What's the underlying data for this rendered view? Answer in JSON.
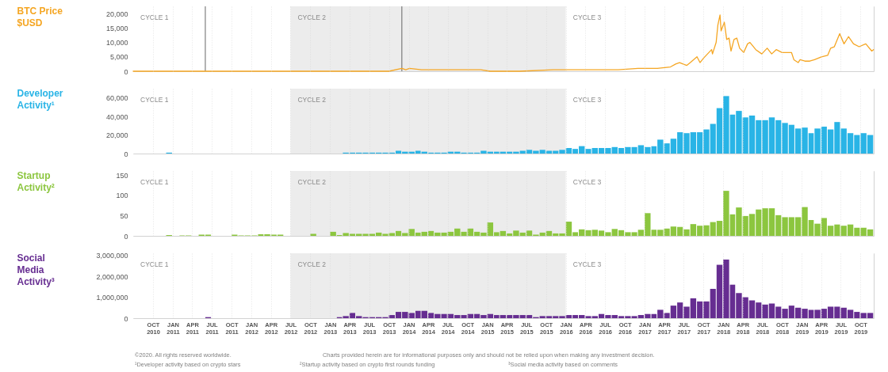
{
  "chart_data": [
    {
      "type": "line",
      "ylabel": "BTC Price $USD",
      "x": [
        "2010-07",
        "2011-01",
        "2011-06",
        "2012-01",
        "2012-07",
        "2013-01",
        "2013-04",
        "2013-10",
        "2013-11-30",
        "2013-12-18",
        "2014-01-05",
        "2014-03-01",
        "2014-06-01",
        "2014-09-01",
        "2014-12-01",
        "2015-01-14",
        "2015-06-01",
        "2015-11-04",
        "2016-01-01",
        "2016-06-16",
        "2016-09-01",
        "2016-12-01",
        "2017-01-04",
        "2017-03-01",
        "2017-05-01",
        "2017-05-25",
        "2017-06-12",
        "2017-07-15",
        "2017-08-01",
        "2017-09-01",
        "2017-09-15",
        "2017-10-01",
        "2017-10-20",
        "2017-11-08",
        "2017-11-12",
        "2017-11-29",
        "2017-12-07",
        "2017-12-17",
        "2017-12-22",
        "2018-01-06",
        "2018-01-17",
        "2018-01-28",
        "2018-02-06",
        "2018-02-20",
        "2018-03-05",
        "2018-03-18",
        "2018-04-06",
        "2018-04-24",
        "2018-05-05",
        "2018-06-01",
        "2018-06-29",
        "2018-07-24",
        "2018-08-14",
        "2018-09-04",
        "2018-10-01",
        "2018-11-14",
        "2018-11-25",
        "2018-12-15",
        "2018-12-24",
        "2019-01-15",
        "2019-02-07",
        "2019-03-01",
        "2019-04-02",
        "2019-05-01",
        "2019-05-15",
        "2019-06-01",
        "2019-06-26",
        "2019-07-16",
        "2019-08-06",
        "2019-08-29",
        "2019-09-24",
        "2019-10-25",
        "2019-11-22",
        "2019-11-30"
      ],
      "series": [
        {
          "color": "#f5a623",
          "values": [
            0,
            0,
            0,
            0,
            0,
            0,
            0,
            0,
            1000,
            500,
            1000,
            500,
            500,
            500,
            500,
            0,
            0,
            500,
            500,
            500,
            500,
            1000,
            1000,
            1000,
            1500,
            2500,
            3000,
            2000,
            3000,
            5000,
            3000,
            4500,
            6000,
            7500,
            6000,
            10000,
            16000,
            19500,
            14000,
            17000,
            11000,
            11500,
            7000,
            11000,
            11500,
            8000,
            6500,
            9500,
            10000,
            7500,
            6000,
            8000,
            6000,
            7500,
            6500,
            6500,
            4000,
            3000,
            4000,
            3500,
            3500,
            4000,
            5000,
            5500,
            8000,
            8500,
            13000,
            9500,
            12000,
            9500,
            8500,
            9500,
            7000,
            7500
          ]
        }
      ],
      "xlim": [
        "2010-07",
        "2019-12"
      ],
      "xticks": [
        {
          "value": "2010-10",
          "label": null
        },
        {
          "value": "2011-01",
          "label": null
        },
        {
          "value": "2011-04",
          "label": null
        },
        {
          "value": "2011-07",
          "label": null
        },
        {
          "value": "2011-10",
          "label": null
        },
        {
          "value": "2012-01",
          "label": null
        },
        {
          "value": "2012-04",
          "label": null
        },
        {
          "value": "2012-07",
          "label": null
        },
        {
          "value": "2012-10",
          "label": null
        },
        {
          "value": "2013-01",
          "label": null
        },
        {
          "value": "2013-04",
          "label": null
        },
        {
          "value": "2013-07",
          "label": null
        },
        {
          "value": "2013-10",
          "label": null
        },
        {
          "value": "2014-01",
          "label": null
        },
        {
          "value": "2014-04",
          "label": null
        },
        {
          "value": "2014-07",
          "label": null
        },
        {
          "value": "2014-10",
          "label": null
        },
        {
          "value": "2015-01",
          "label": null
        },
        {
          "value": "2015-04",
          "label": null
        },
        {
          "value": "2015-07",
          "label": null
        },
        {
          "value": "2015-10",
          "label": null
        },
        {
          "value": "2016-01",
          "label": null
        },
        {
          "value": "2016-04",
          "label": null
        },
        {
          "value": "2016-07",
          "label": null
        },
        {
          "value": "2016-10",
          "label": null
        },
        {
          "value": "2017-01",
          "label": null
        },
        {
          "value": "2017-04",
          "label": null
        },
        {
          "value": "2017-07",
          "label": null
        },
        {
          "value": "2017-10",
          "label": null
        },
        {
          "value": "2018-01",
          "label": null
        },
        {
          "value": "2018-04",
          "label": null
        },
        {
          "value": "2018-07",
          "label": null
        },
        {
          "value": "2018-10",
          "label": null
        },
        {
          "value": "2019-01",
          "label": null
        },
        {
          "value": "2019-04",
          "label": null
        },
        {
          "value": "2019-07",
          "label": null
        },
        {
          "value": "2019-10",
          "label": null
        }
      ],
      "ylim": [
        0,
        22500
      ],
      "yticks": [
        0,
        {
          "value": 5000,
          "label": "5,000"
        },
        {
          "value": 10000,
          "label": "10,000"
        },
        {
          "value": 15000,
          "label": "15,000"
        },
        {
          "value": 20000,
          "label": "20,000"
        }
      ],
      "grid": "x",
      "tick_labels": "y",
      "bands": [
        {
          "axis": "x",
          "from": "2010-07",
          "to": "2012-07",
          "label": "CYCLE 1",
          "color": "#ffffff"
        },
        {
          "axis": "x",
          "from": "2012-07",
          "to": "2016-01",
          "label": "CYCLE 2",
          "color": "#ececec"
        },
        {
          "axis": "x",
          "from": "2016-01",
          "to": "2019-12",
          "label": "CYCLE 3",
          "color": "#ffffff"
        }
      ],
      "ref_lines": [
        {
          "axis": "x",
          "value": "2011-06",
          "color": "#555555"
        },
        {
          "axis": "x",
          "value": "2013-11-30",
          "color": "#555555"
        }
      ]
    },
    {
      "type": "bar",
      "ylabel": "Developer Activity¹",
      "x": [
        "2010-07",
        "2010-08",
        "2010-09",
        "2010-10",
        "2010-11",
        "2010-12",
        "2011-01",
        "2011-02",
        "2011-03",
        "2011-04",
        "2011-05",
        "2011-06",
        "2011-07",
        "2011-08",
        "2011-09",
        "2011-10",
        "2011-11",
        "2011-12",
        "2012-01",
        "2012-02",
        "2012-03",
        "2012-04",
        "2012-05",
        "2012-06",
        "2012-07",
        "2012-08",
        "2012-09",
        "2012-10",
        "2012-11",
        "2012-12",
        "2013-01",
        "2013-02",
        "2013-03",
        "2013-04",
        "2013-05",
        "2013-06",
        "2013-07",
        "2013-08",
        "2013-09",
        "2013-10",
        "2013-11",
        "2013-12",
        "2014-01",
        "2014-02",
        "2014-03",
        "2014-04",
        "2014-05",
        "2014-06",
        "2014-07",
        "2014-08",
        "2014-09",
        "2014-10",
        "2014-11",
        "2014-12",
        "2015-01",
        "2015-02",
        "2015-03",
        "2015-04",
        "2015-05",
        "2015-06",
        "2015-07",
        "2015-08",
        "2015-09",
        "2015-10",
        "2015-11",
        "2015-12",
        "2016-01",
        "2016-02",
        "2016-03",
        "2016-04",
        "2016-05",
        "2016-06",
        "2016-07",
        "2016-08",
        "2016-09",
        "2016-10",
        "2016-11",
        "2016-12",
        "2017-01",
        "2017-02",
        "2017-03",
        "2017-04",
        "2017-05",
        "2017-06",
        "2017-07",
        "2017-08",
        "2017-09",
        "2017-10",
        "2017-11",
        "2017-12",
        "2018-01",
        "2018-02",
        "2018-03",
        "2018-04",
        "2018-05",
        "2018-06",
        "2018-07",
        "2018-08",
        "2018-09",
        "2018-10",
        "2018-11",
        "2018-12",
        "2019-01",
        "2019-02",
        "2019-03",
        "2019-04",
        "2019-05",
        "2019-06",
        "2019-07",
        "2019-08",
        "2019-09",
        "2019-10",
        "2019-11"
      ],
      "series": [
        {
          "color": "#29b4e6",
          "values": [
            0,
            0,
            0,
            0,
            0,
            1000,
            0,
            0,
            0,
            0,
            0,
            0,
            0,
            0,
            0,
            0,
            0,
            0,
            0,
            0,
            0,
            0,
            0,
            0,
            0,
            0,
            0,
            0,
            0,
            0,
            0,
            0,
            1000,
            1000,
            1000,
            1000,
            1000,
            1000,
            1000,
            1000,
            3000,
            2000,
            2000,
            3000,
            2000,
            1000,
            1000,
            1000,
            2000,
            2000,
            1000,
            1000,
            1000,
            3000,
            2000,
            2000,
            2000,
            2000,
            2000,
            3000,
            4000,
            3000,
            4000,
            3000,
            3000,
            4000,
            6000,
            5000,
            8000,
            5000,
            6000,
            6000,
            6000,
            7000,
            6000,
            7000,
            7000,
            9000,
            7000,
            8000,
            15000,
            11000,
            16000,
            23000,
            22000,
            23000,
            23000,
            26000,
            32000,
            49000,
            62000,
            42000,
            46000,
            39000,
            41000,
            36000,
            36000,
            39000,
            36000,
            33000,
            31000,
            27000,
            28000,
            22000,
            27000,
            29000,
            26000,
            34000,
            27000,
            22000,
            20000,
            22000,
            20000
          ]
        }
      ],
      "xlim": [
        "2010-07",
        "2019-12"
      ],
      "xticks": [
        {
          "value": "2010-10",
          "label": null
        },
        {
          "value": "2011-01",
          "label": null
        },
        {
          "value": "2011-04",
          "label": null
        },
        {
          "value": "2011-07",
          "label": null
        },
        {
          "value": "2011-10",
          "label": null
        },
        {
          "value": "2012-01",
          "label": null
        },
        {
          "value": "2012-04",
          "label": null
        },
        {
          "value": "2012-07",
          "label": null
        },
        {
          "value": "2012-10",
          "label": null
        },
        {
          "value": "2013-01",
          "label": null
        },
        {
          "value": "2013-04",
          "label": null
        },
        {
          "value": "2013-07",
          "label": null
        },
        {
          "value": "2013-10",
          "label": null
        },
        {
          "value": "2014-01",
          "label": null
        },
        {
          "value": "2014-04",
          "label": null
        },
        {
          "value": "2014-07",
          "label": null
        },
        {
          "value": "2014-10",
          "label": null
        },
        {
          "value": "2015-01",
          "label": null
        },
        {
          "value": "2015-04",
          "label": null
        },
        {
          "value": "2015-07",
          "label": null
        },
        {
          "value": "2015-10",
          "label": null
        },
        {
          "value": "2016-01",
          "label": null
        },
        {
          "value": "2016-04",
          "label": null
        },
        {
          "value": "2016-07",
          "label": null
        },
        {
          "value": "2016-10",
          "label": null
        },
        {
          "value": "2017-01",
          "label": null
        },
        {
          "value": "2017-04",
          "label": null
        },
        {
          "value": "2017-07",
          "label": null
        },
        {
          "value": "2017-10",
          "label": null
        },
        {
          "value": "2018-01",
          "label": null
        },
        {
          "value": "2018-04",
          "label": null
        },
        {
          "value": "2018-07",
          "label": null
        },
        {
          "value": "2018-10",
          "label": null
        },
        {
          "value": "2019-01",
          "label": null
        },
        {
          "value": "2019-04",
          "label": null
        },
        {
          "value": "2019-07",
          "label": null
        },
        {
          "value": "2019-10",
          "label": null
        }
      ],
      "ylim": [
        0,
        70000
      ],
      "yticks": [
        0,
        {
          "value": 20000,
          "label": "20,000"
        },
        {
          "value": 40000,
          "label": "40,000"
        },
        {
          "value": 60000,
          "label": "60,000"
        }
      ],
      "grid": "x",
      "tick_labels": "y",
      "bands": [
        {
          "axis": "x",
          "from": "2010-07",
          "to": "2012-07",
          "label": "CYCLE 1",
          "color": "#ffffff"
        },
        {
          "axis": "x",
          "from": "2012-07",
          "to": "2016-01",
          "label": "CYCLE 2",
          "color": "#ececec"
        },
        {
          "axis": "x",
          "from": "2016-01",
          "to": "2019-12",
          "label": "CYCLE 3",
          "color": "#ffffff"
        }
      ]
    },
    {
      "type": "bar",
      "ylabel": "Startup Activity²",
      "x": [
        "2010-07",
        "2010-08",
        "2010-09",
        "2010-10",
        "2010-11",
        "2010-12",
        "2011-01",
        "2011-02",
        "2011-03",
        "2011-04",
        "2011-05",
        "2011-06",
        "2011-07",
        "2011-08",
        "2011-09",
        "2011-10",
        "2011-11",
        "2011-12",
        "2012-01",
        "2012-02",
        "2012-03",
        "2012-04",
        "2012-05",
        "2012-06",
        "2012-07",
        "2012-08",
        "2012-09",
        "2012-10",
        "2012-11",
        "2012-12",
        "2013-01",
        "2013-02",
        "2013-03",
        "2013-04",
        "2013-05",
        "2013-06",
        "2013-07",
        "2013-08",
        "2013-09",
        "2013-10",
        "2013-11",
        "2013-12",
        "2014-01",
        "2014-02",
        "2014-03",
        "2014-04",
        "2014-05",
        "2014-06",
        "2014-07",
        "2014-08",
        "2014-09",
        "2014-10",
        "2014-11",
        "2014-12",
        "2015-01",
        "2015-02",
        "2015-03",
        "2015-04",
        "2015-05",
        "2015-06",
        "2015-07",
        "2015-08",
        "2015-09",
        "2015-10",
        "2015-11",
        "2015-12",
        "2016-01",
        "2016-02",
        "2016-03",
        "2016-04",
        "2016-05",
        "2016-06",
        "2016-07",
        "2016-08",
        "2016-09",
        "2016-10",
        "2016-11",
        "2016-12",
        "2017-01",
        "2017-02",
        "2017-03",
        "2017-04",
        "2017-05",
        "2017-06",
        "2017-07",
        "2017-08",
        "2017-09",
        "2017-10",
        "2017-11",
        "2017-12",
        "2018-01",
        "2018-02",
        "2018-03",
        "2018-04",
        "2018-05",
        "2018-06",
        "2018-07",
        "2018-08",
        "2018-09",
        "2018-10",
        "2018-11",
        "2018-12",
        "2019-01",
        "2019-02",
        "2019-03",
        "2019-04",
        "2019-05",
        "2019-06",
        "2019-07",
        "2019-08",
        "2019-09",
        "2019-10",
        "2019-11"
      ],
      "series": [
        {
          "color": "#8cc63f",
          "values": [
            0,
            0,
            0,
            0,
            0,
            2,
            0,
            1,
            1,
            0,
            3,
            3,
            0,
            0,
            0,
            3,
            1,
            1,
            1,
            4,
            4,
            3,
            3,
            0,
            0,
            0,
            0,
            5,
            0,
            0,
            10,
            2,
            7,
            5,
            5,
            5,
            5,
            8,
            5,
            7,
            12,
            7,
            17,
            8,
            10,
            12,
            8,
            8,
            10,
            18,
            10,
            18,
            10,
            8,
            33,
            9,
            12,
            6,
            13,
            8,
            13,
            3,
            8,
            12,
            6,
            6,
            35,
            9,
            16,
            14,
            15,
            13,
            9,
            17,
            14,
            9,
            9,
            15,
            56,
            15,
            15,
            18,
            23,
            22,
            16,
            29,
            25,
            26,
            34,
            37,
            111,
            53,
            70,
            49,
            54,
            65,
            68,
            68,
            51,
            46,
            46,
            46,
            71,
            39,
            30,
            44,
            25,
            28,
            25,
            28,
            20,
            20,
            16
          ]
        }
      ],
      "xlim": [
        "2010-07",
        "2019-12"
      ],
      "xticks": [
        {
          "value": "2010-10",
          "label": null
        },
        {
          "value": "2011-01",
          "label": null
        },
        {
          "value": "2011-04",
          "label": null
        },
        {
          "value": "2011-07",
          "label": null
        },
        {
          "value": "2011-10",
          "label": null
        },
        {
          "value": "2012-01",
          "label": null
        },
        {
          "value": "2012-04",
          "label": null
        },
        {
          "value": "2012-07",
          "label": null
        },
        {
          "value": "2012-10",
          "label": null
        },
        {
          "value": "2013-01",
          "label": null
        },
        {
          "value": "2013-04",
          "label": null
        },
        {
          "value": "2013-07",
          "label": null
        },
        {
          "value": "2013-10",
          "label": null
        },
        {
          "value": "2014-01",
          "label": null
        },
        {
          "value": "2014-04",
          "label": null
        },
        {
          "value": "2014-07",
          "label": null
        },
        {
          "value": "2014-10",
          "label": null
        },
        {
          "value": "2015-01",
          "label": null
        },
        {
          "value": "2015-04",
          "label": null
        },
        {
          "value": "2015-07",
          "label": null
        },
        {
          "value": "2015-10",
          "label": null
        },
        {
          "value": "2016-01",
          "label": null
        },
        {
          "value": "2016-04",
          "label": null
        },
        {
          "value": "2016-07",
          "label": null
        },
        {
          "value": "2016-10",
          "label": null
        },
        {
          "value": "2017-01",
          "label": null
        },
        {
          "value": "2017-04",
          "label": null
        },
        {
          "value": "2017-07",
          "label": null
        },
        {
          "value": "2017-10",
          "label": null
        },
        {
          "value": "2018-01",
          "label": null
        },
        {
          "value": "2018-04",
          "label": null
        },
        {
          "value": "2018-07",
          "label": null
        },
        {
          "value": "2018-10",
          "label": null
        },
        {
          "value": "2019-01",
          "label": null
        },
        {
          "value": "2019-04",
          "label": null
        },
        {
          "value": "2019-07",
          "label": null
        },
        {
          "value": "2019-10",
          "label": null
        }
      ],
      "ylim": [
        0,
        160
      ],
      "yticks": [
        0,
        50,
        100,
        150
      ],
      "grid": "x",
      "tick_labels": "y",
      "bands": [
        {
          "axis": "x",
          "from": "2010-07",
          "to": "2012-07",
          "label": "CYCLE 1",
          "color": "#ffffff"
        },
        {
          "axis": "x",
          "from": "2012-07",
          "to": "2016-01",
          "label": "CYCLE 2",
          "color": "#ececec"
        },
        {
          "axis": "x",
          "from": "2016-01",
          "to": "2019-12",
          "label": "CYCLE 3",
          "color": "#ffffff"
        }
      ]
    },
    {
      "type": "bar",
      "ylabel": "Social Media Activity³",
      "x": [
        "2010-07",
        "2010-08",
        "2010-09",
        "2010-10",
        "2010-11",
        "2010-12",
        "2011-01",
        "2011-02",
        "2011-03",
        "2011-04",
        "2011-05",
        "2011-06",
        "2011-07",
        "2011-08",
        "2011-09",
        "2011-10",
        "2011-11",
        "2011-12",
        "2012-01",
        "2012-02",
        "2012-03",
        "2012-04",
        "2012-05",
        "2012-06",
        "2012-07",
        "2012-08",
        "2012-09",
        "2012-10",
        "2012-11",
        "2012-12",
        "2013-01",
        "2013-02",
        "2013-03",
        "2013-04",
        "2013-05",
        "2013-06",
        "2013-07",
        "2013-08",
        "2013-09",
        "2013-10",
        "2013-11",
        "2013-12",
        "2014-01",
        "2014-02",
        "2014-03",
        "2014-04",
        "2014-05",
        "2014-06",
        "2014-07",
        "2014-08",
        "2014-09",
        "2014-10",
        "2014-11",
        "2014-12",
        "2015-01",
        "2015-02",
        "2015-03",
        "2015-04",
        "2015-05",
        "2015-06",
        "2015-07",
        "2015-08",
        "2015-09",
        "2015-10",
        "2015-11",
        "2015-12",
        "2016-01",
        "2016-02",
        "2016-03",
        "2016-04",
        "2016-05",
        "2016-06",
        "2016-07",
        "2016-08",
        "2016-09",
        "2016-10",
        "2016-11",
        "2016-12",
        "2017-01",
        "2017-02",
        "2017-03",
        "2017-04",
        "2017-05",
        "2017-06",
        "2017-07",
        "2017-08",
        "2017-09",
        "2017-10",
        "2017-11",
        "2017-12",
        "2018-01",
        "2018-02",
        "2018-03",
        "2018-04",
        "2018-05",
        "2018-06",
        "2018-07",
        "2018-08",
        "2018-09",
        "2018-10",
        "2018-11",
        "2018-12",
        "2019-01",
        "2019-02",
        "2019-03",
        "2019-04",
        "2019-05",
        "2019-06",
        "2019-07",
        "2019-08",
        "2019-09",
        "2019-10",
        "2019-11"
      ],
      "series": [
        {
          "color": "#662d91",
          "values": [
            0,
            0,
            0,
            0,
            0,
            0,
            0,
            0,
            0,
            0,
            0,
            50000,
            0,
            0,
            0,
            0,
            0,
            0,
            0,
            0,
            0,
            0,
            0,
            0,
            0,
            0,
            0,
            0,
            0,
            0,
            0,
            50000,
            100000,
            250000,
            100000,
            50000,
            50000,
            50000,
            50000,
            150000,
            300000,
            300000,
            250000,
            350000,
            350000,
            250000,
            200000,
            200000,
            200000,
            150000,
            150000,
            200000,
            200000,
            150000,
            200000,
            150000,
            150000,
            150000,
            150000,
            150000,
            150000,
            50000,
            100000,
            100000,
            100000,
            100000,
            150000,
            150000,
            150000,
            100000,
            100000,
            200000,
            150000,
            150000,
            100000,
            100000,
            100000,
            150000,
            200000,
            200000,
            400000,
            250000,
            600000,
            750000,
            550000,
            950000,
            800000,
            800000,
            1400000,
            2550000,
            2800000,
            1600000,
            1200000,
            1000000,
            850000,
            750000,
            650000,
            700000,
            550000,
            450000,
            600000,
            500000,
            450000,
            400000,
            400000,
            450000,
            550000,
            550000,
            500000,
            400000,
            300000,
            250000,
            250000
          ]
        }
      ],
      "xlim": [
        "2010-07",
        "2019-12"
      ],
      "xticks": [
        {
          "value": "2010-10",
          "label": "OCT 2010"
        },
        {
          "value": "2011-01",
          "label": "JAN 2011"
        },
        {
          "value": "2011-04",
          "label": "APR 2011"
        },
        {
          "value": "2011-07",
          "label": "JUL 2011"
        },
        {
          "value": "2011-10",
          "label": "OCT 2011"
        },
        {
          "value": "2012-01",
          "label": "JAN 2012"
        },
        {
          "value": "2012-04",
          "label": "APR 2012"
        },
        {
          "value": "2012-07",
          "label": "JUL 2012"
        },
        {
          "value": "2012-10",
          "label": "OCT 2012"
        },
        {
          "value": "2013-01",
          "label": "JAN 2013"
        },
        {
          "value": "2013-04",
          "label": "APR 2013"
        },
        {
          "value": "2013-07",
          "label": "JUL 2013"
        },
        {
          "value": "2013-10",
          "label": "OCT 2013"
        },
        {
          "value": "2014-01",
          "label": "JAN 2014"
        },
        {
          "value": "2014-04",
          "label": "APR 2014"
        },
        {
          "value": "2014-07",
          "label": "JUL 2014"
        },
        {
          "value": "2014-10",
          "label": "OCT 2014"
        },
        {
          "value": "2015-01",
          "label": "JAN 2015"
        },
        {
          "value": "2015-04",
          "label": "APR 2015"
        },
        {
          "value": "2015-07",
          "label": "JUL 2015"
        },
        {
          "value": "2015-10",
          "label": "OCT 2015"
        },
        {
          "value": "2016-01",
          "label": "JAN 2016"
        },
        {
          "value": "2016-04",
          "label": "APR 2016"
        },
        {
          "value": "2016-07",
          "label": "JUL 2016"
        },
        {
          "value": "2016-10",
          "label": "OCT 2016"
        },
        {
          "value": "2017-01",
          "label": "JAN 2017"
        },
        {
          "value": "2017-04",
          "label": "APR 2017"
        },
        {
          "value": "2017-07",
          "label": "JUL 2017"
        },
        {
          "value": "2017-10",
          "label": "OCT 2017"
        },
        {
          "value": "2018-01",
          "label": "JAN 2018"
        },
        {
          "value": "2018-04",
          "label": "APR 2018"
        },
        {
          "value": "2018-07",
          "label": "JUL 2018"
        },
        {
          "value": "2018-10",
          "label": "OCT 2018"
        },
        {
          "value": "2019-01",
          "label": "JAN 2019"
        },
        {
          "value": "2019-04",
          "label": "APR 2019"
        },
        {
          "value": "2019-07",
          "label": "JUL 2019"
        },
        {
          "value": "2019-10",
          "label": "OCT 2019"
        }
      ],
      "ylim": [
        0,
        3100000
      ],
      "yticks": [
        0,
        {
          "value": 1000000,
          "label": "1,000,000"
        },
        {
          "value": 2000000,
          "label": "2,000,000"
        },
        {
          "value": 3000000,
          "label": "3,000,000"
        }
      ],
      "grid": "x",
      "bands": [
        {
          "axis": "x",
          "from": "2010-07",
          "to": "2012-07",
          "label": "CYCLE 1",
          "color": "#ffffff"
        },
        {
          "axis": "x",
          "from": "2012-07",
          "to": "2016-01",
          "label": "CYCLE 2",
          "color": "#ececec"
        },
        {
          "axis": "x",
          "from": "2016-01",
          "to": "2019-12",
          "label": "CYCLE 3",
          "color": "#ffffff"
        }
      ],
      "annotations": [
        "©2020. All rights reserved worldwide.",
        "Charts provided herein are for informational purposes only and should not be relied upon when making any investment decision.",
        "¹Developer activity based on crypto stars",
        "²Startup activity based on crypto first rounds funding",
        "³Social media activity based on comments"
      ]
    }
  ]
}
